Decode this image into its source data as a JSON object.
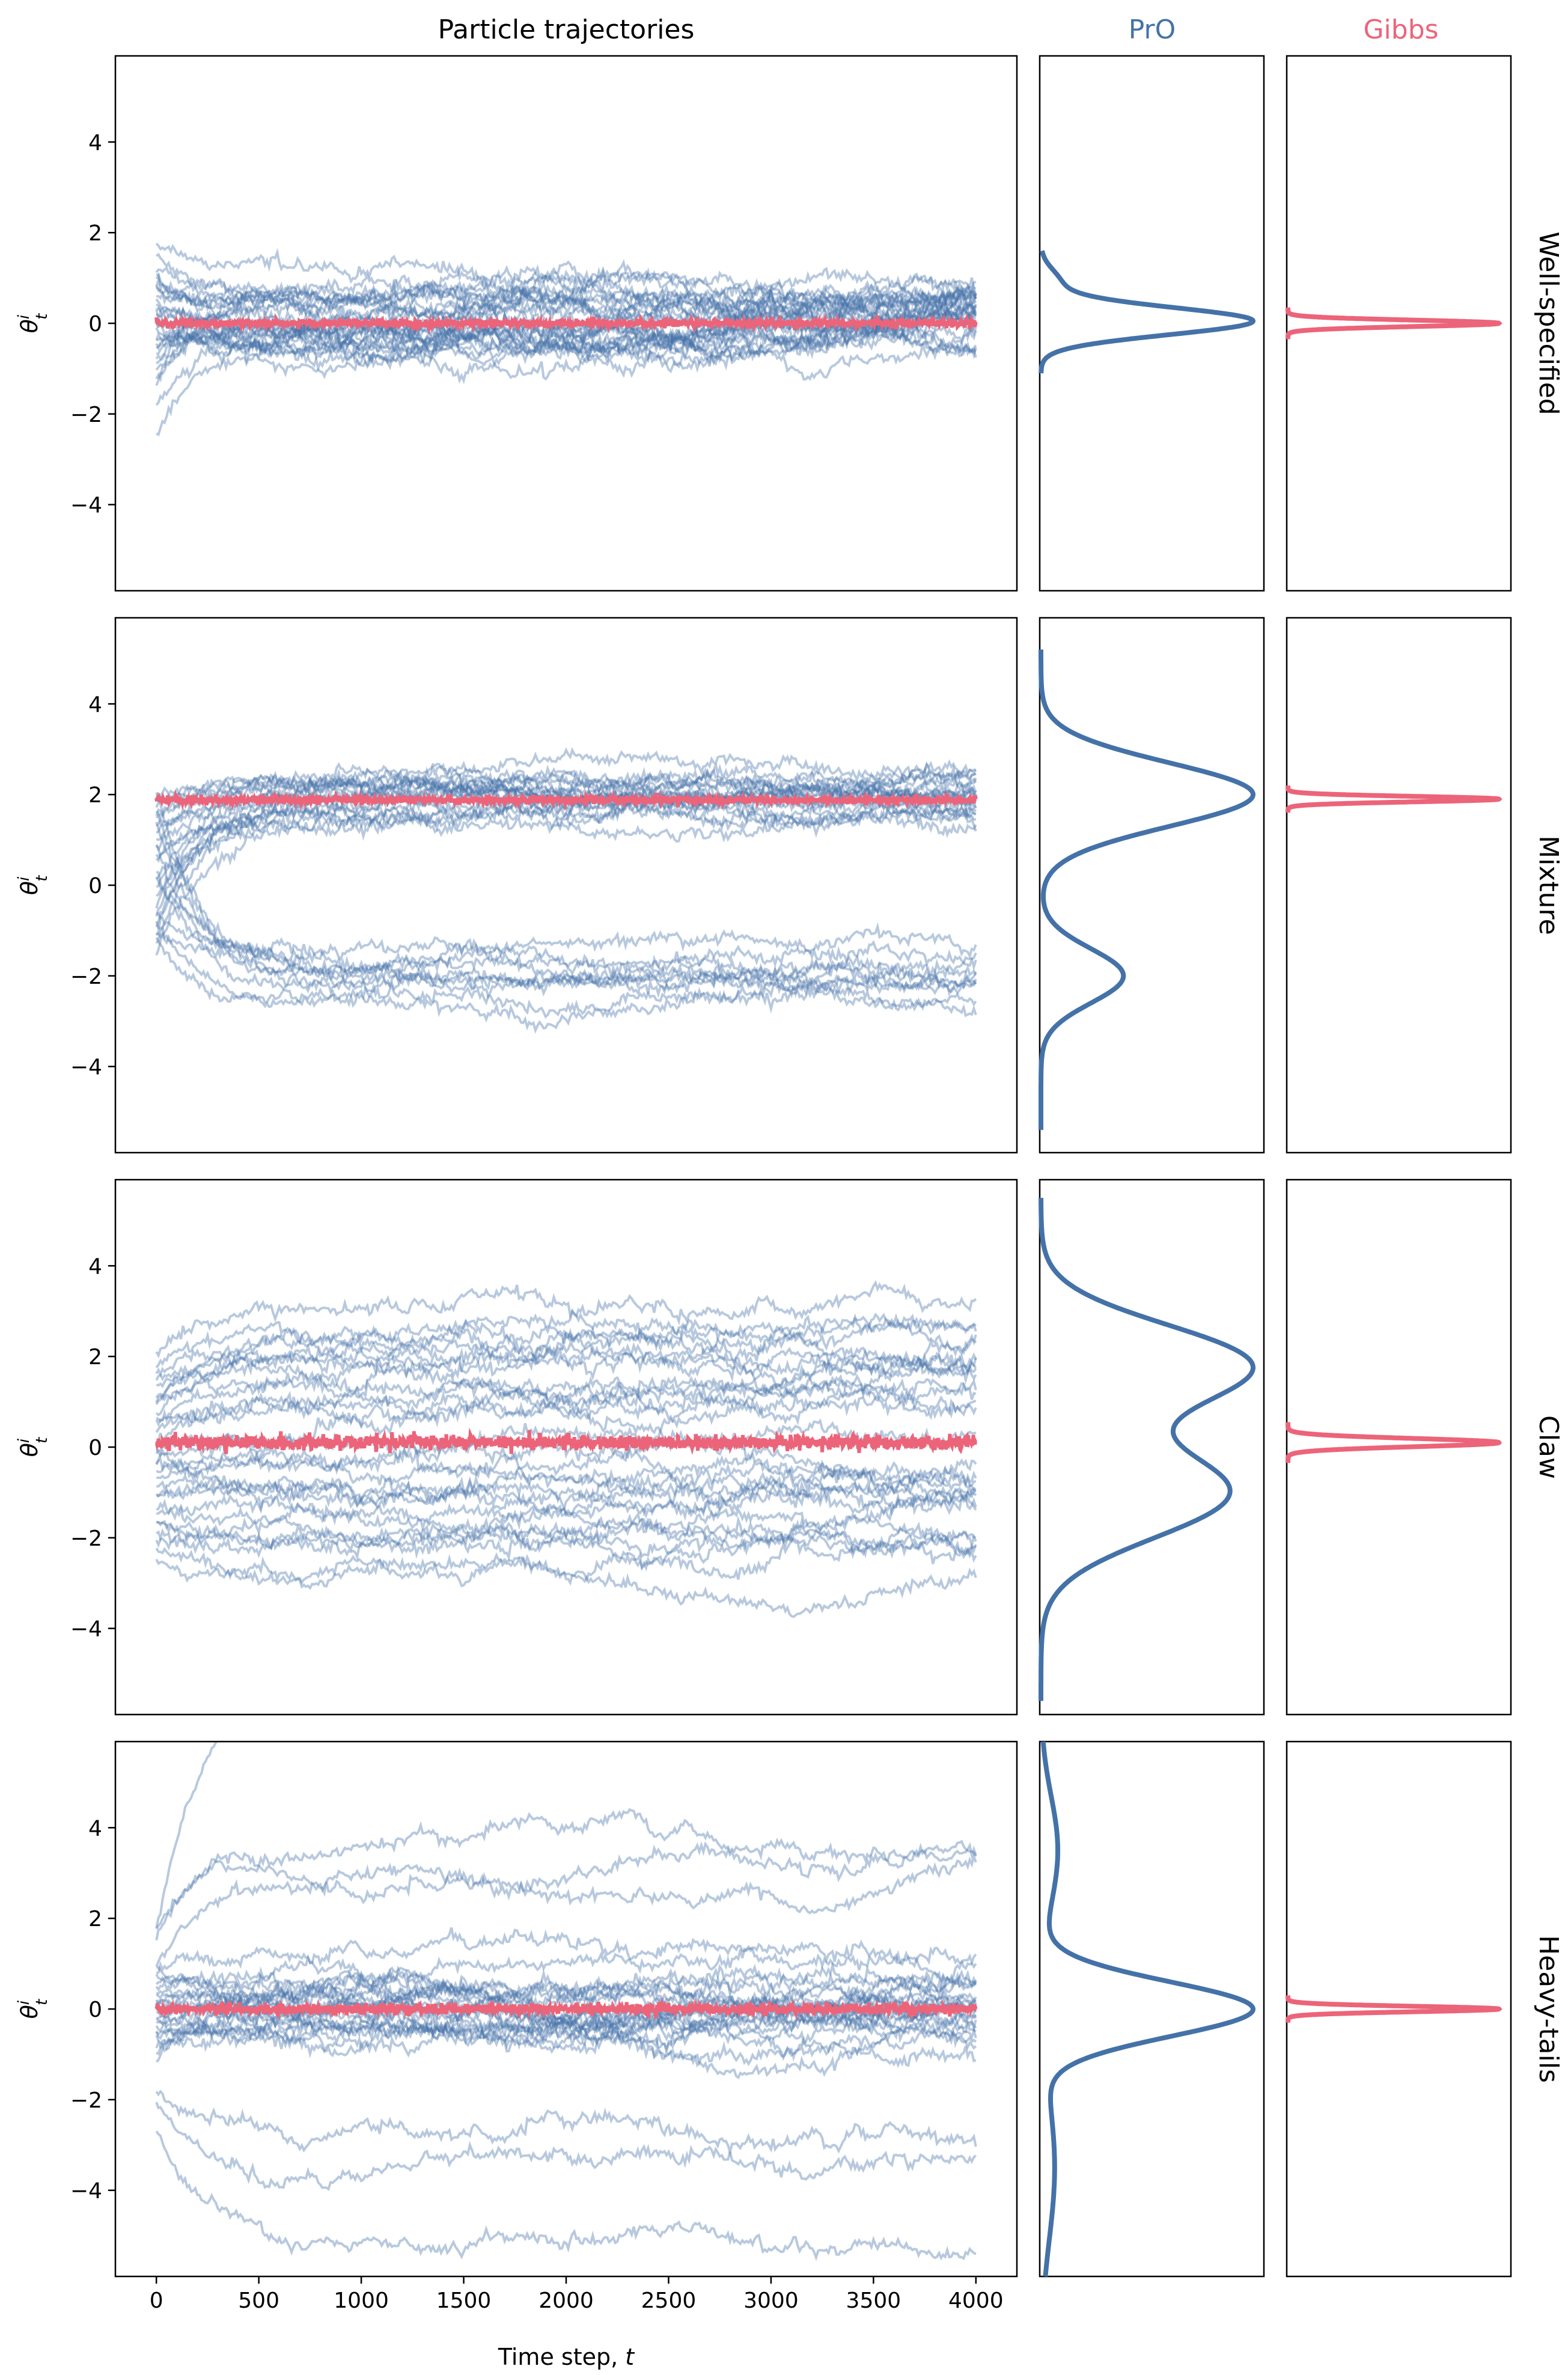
{
  "chart_data": {
    "type": "line",
    "colors": {
      "pro": "#4472a8",
      "gibbs": "#ec6479"
    },
    "columns": [
      {
        "key": "traj",
        "title": "Particle trajectories"
      },
      {
        "key": "pro",
        "title": "PrO"
      },
      {
        "key": "gibbs",
        "title": "Gibbs"
      }
    ],
    "xlabel": "Time step, t",
    "ylabel": "θ",
    "ylabel_sup": "i",
    "ylabel_sub": "t",
    "xlim": [
      -200,
      4200
    ],
    "ylim": [
      -5.9,
      5.9
    ],
    "xticks": [
      0,
      500,
      1000,
      1500,
      2000,
      2500,
      3000,
      3500,
      4000
    ],
    "xtick_labels": [
      "0",
      "500",
      "1000",
      "1500",
      "2000",
      "2500",
      "3000",
      "3500",
      "4000"
    ],
    "yticks": [
      -4,
      -2,
      0,
      2,
      4
    ],
    "ytick_labels": [
      "−4",
      "−2",
      "0",
      "2",
      "4"
    ],
    "rows": [
      {
        "label": "Well-specified",
        "particles": {
          "count": 30,
          "start_values": [
            1.8,
            1.5,
            1.2,
            1.0,
            0.9,
            0.7,
            0.6,
            0.4,
            0.3,
            0.2,
            0.1,
            0.0,
            -0.1,
            -0.2,
            -0.3,
            -0.5,
            -0.6,
            -0.8,
            -1.0,
            -1.2,
            -1.4,
            -1.8,
            -2.5,
            0.8,
            -0.4,
            0.5,
            -0.7,
            0.2,
            -0.9,
            1.1
          ],
          "final_values": [
            1.0,
            0.8,
            0.6,
            0.5,
            0.4,
            0.3,
            0.2,
            0.1,
            0.0,
            -0.1,
            -0.2,
            -0.3,
            -0.4,
            -0.5,
            -0.6,
            -0.2,
            0.1,
            0.3,
            -0.1,
            0.0,
            0.2,
            -0.3,
            -0.5,
            0.4,
            0.0,
            -0.4,
            0.6,
            -0.6,
            0.2,
            -0.1
          ],
          "spread": 0.5
        },
        "gibbs_trace": {
          "center": 0.0,
          "amplitude": 0.08
        },
        "pro_density": [
          {
            "mean": 0.05,
            "sd": 0.3,
            "weight": 0.92
          },
          {
            "mean": 0.9,
            "sd": 0.3,
            "weight": 0.08
          }
        ],
        "pro_range": [
          -1.1,
          1.6
        ],
        "gibbs_density": {
          "mean": 0.0,
          "sd": 0.07
        }
      },
      {
        "label": "Mixture",
        "particles": {
          "count": 30,
          "start_values": [
            2.0,
            1.8,
            1.5,
            1.3,
            1.0,
            0.8,
            0.5,
            0.2,
            0.0,
            -0.3,
            -0.5,
            -0.7,
            -0.9,
            -1.1,
            -1.3,
            -1.5,
            1.9,
            1.6,
            1.2,
            0.6,
            0.1,
            -0.6,
            -1.0,
            2.1,
            1.4,
            0.9,
            -0.8,
            -1.2,
            1.7,
            0.3
          ],
          "final_values": [
            2.5,
            2.3,
            2.2,
            2.1,
            2.0,
            1.9,
            1.8,
            1.7,
            1.6,
            1.4,
            2.4,
            2.0,
            1.8,
            2.2,
            1.5,
            1.3,
            2.1,
            1.9,
            2.0,
            1.7,
            -1.3,
            -1.6,
            -1.8,
            -2.0,
            -2.1,
            -2.3,
            -2.5,
            -2.7,
            -1.9,
            -2.2
          ],
          "spread": 0.35
        },
        "gibbs_trace": {
          "center": 1.88,
          "amplitude": 0.08
        },
        "pro_density": [
          {
            "mean": 2.0,
            "sd": 0.7,
            "weight": 0.75
          },
          {
            "mean": -2.0,
            "sd": 0.6,
            "weight": 0.25
          }
        ],
        "pro_range": [
          -5.4,
          5.2
        ],
        "gibbs_density": {
          "mean": 1.9,
          "sd": 0.06
        }
      },
      {
        "label": "Claw",
        "particles": {
          "count": 30,
          "start_values": [
            2.0,
            1.8,
            1.6,
            1.3,
            1.1,
            0.9,
            0.7,
            0.5,
            0.3,
            0.1,
            -0.1,
            -0.3,
            -0.5,
            -0.7,
            -0.9,
            -1.1,
            -1.3,
            -1.5,
            -1.7,
            -1.9,
            -2.1,
            -2.3,
            -2.5,
            1.5,
            0.6,
            -0.4,
            -1.0,
            -1.6,
            1.0,
            0.0
          ],
          "final_values": [
            3.0,
            2.8,
            2.5,
            2.2,
            2.0,
            1.8,
            1.6,
            1.3,
            1.0,
            0.8,
            0.5,
            0.2,
            -0.2,
            -0.5,
            -0.8,
            -1.0,
            -1.3,
            -1.5,
            -1.8,
            -2.0,
            -2.3,
            -2.6,
            -2.9,
            1.9,
            0.9,
            -0.6,
            -1.1,
            -2.1,
            2.4,
            -0.9
          ],
          "spread": 0.45
        },
        "gibbs_trace": {
          "center": 0.1,
          "amplitude": 0.14
        },
        "pro_density": [
          {
            "mean": 1.8,
            "sd": 0.9,
            "weight": 0.5
          },
          {
            "mean": -1.0,
            "sd": 1.0,
            "weight": 0.5
          }
        ],
        "pro_range": [
          -5.6,
          5.5
        ],
        "gibbs_density": {
          "mean": 0.1,
          "sd": 0.09
        }
      },
      {
        "label": "Heavy-tails",
        "particles": {
          "count": 30,
          "start_values": [
            1.7,
            1.6,
            1.0,
            0.8,
            0.6,
            0.4,
            0.3,
            0.2,
            0.1,
            0.0,
            -0.1,
            -0.2,
            -0.3,
            -0.5,
            -0.7,
            -0.9,
            -1.1,
            0.5,
            -0.4,
            0.2,
            -0.6,
            0.7,
            -0.8,
            0.0,
            0.9,
            -1.8,
            -2.0,
            -2.6,
            1.8,
            -0.3
          ],
          "final_values": [
            7.0,
            3.7,
            2.9,
            1.3,
            0.6,
            0.4,
            0.3,
            0.2,
            0.1,
            0.0,
            -0.1,
            -0.2,
            -0.3,
            -0.4,
            -0.5,
            -0.3,
            0.2,
            0.5,
            -0.6,
            0.1,
            -0.2,
            0.4,
            -0.4,
            0.0,
            0.3,
            -2.7,
            -3.5,
            -5.0,
            3.3,
            -0.1
          ],
          "spread": 0.45
        },
        "gibbs_trace": {
          "center": 0.0,
          "amplitude": 0.1
        },
        "pro_density": [
          {
            "mean": 0.0,
            "sd": 0.6,
            "weight": 0.75
          },
          {
            "mean": 3.5,
            "sd": 1.2,
            "weight": 0.12
          },
          {
            "mean": -3.5,
            "sd": 1.6,
            "weight": 0.13
          }
        ],
        "pro_range": [
          -5.9,
          5.9
        ],
        "gibbs_density": {
          "mean": 0.0,
          "sd": 0.06
        }
      }
    ]
  }
}
